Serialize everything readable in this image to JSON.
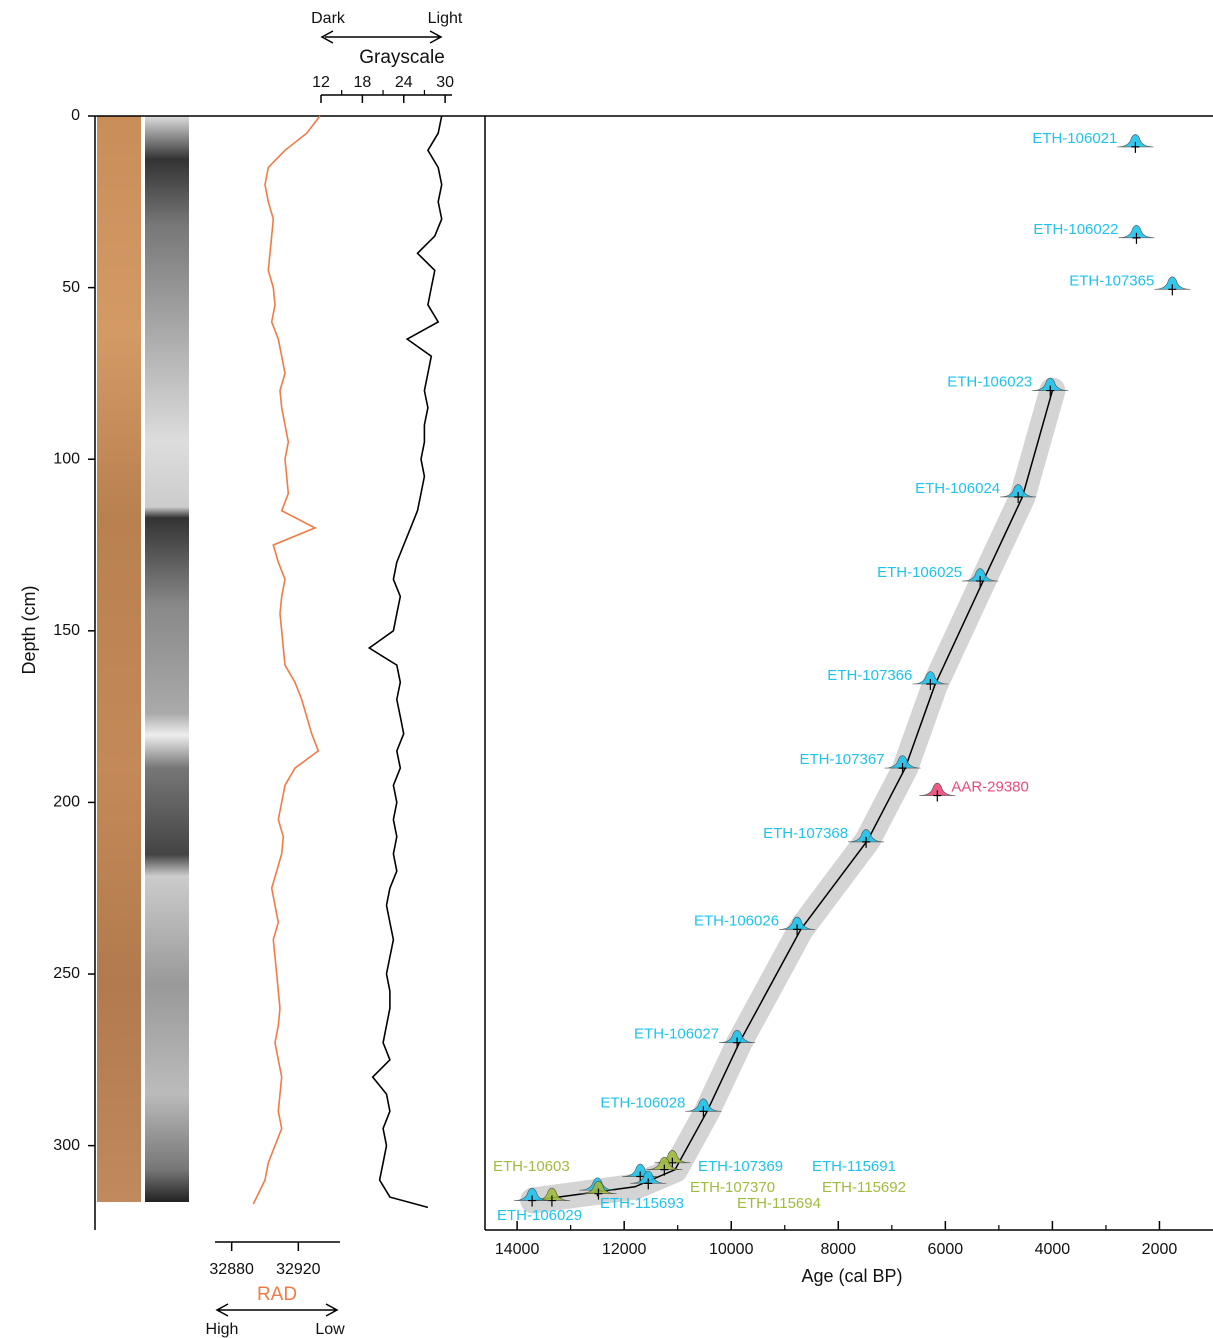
{
  "chart_data": [
    {
      "type": "line",
      "title": "Grayscale",
      "left_label": "Dark",
      "right_label": "Light",
      "ylabel": "Depth (cm)",
      "ylim": [
        0,
        324
      ],
      "yticks": [
        0,
        50,
        100,
        150,
        200,
        250,
        300
      ],
      "xlim": [
        12,
        31
      ],
      "xticks": [
        12,
        18,
        24,
        30
      ],
      "minor_xticks": [
        15,
        21,
        27
      ],
      "color": "#000000",
      "depth": [
        0,
        5,
        10,
        15,
        20,
        25,
        30,
        35,
        40,
        45,
        50,
        55,
        60,
        65,
        70,
        75,
        80,
        85,
        90,
        95,
        100,
        105,
        110,
        115,
        120,
        125,
        130,
        135,
        140,
        145,
        150,
        155,
        160,
        165,
        170,
        175,
        180,
        185,
        190,
        195,
        200,
        205,
        210,
        215,
        220,
        225,
        230,
        235,
        240,
        245,
        250,
        255,
        260,
        265,
        270,
        275,
        280,
        285,
        290,
        295,
        300,
        305,
        310,
        315,
        318
      ],
      "values": [
        29.5,
        29,
        27.5,
        29,
        29.5,
        29,
        29.5,
        28.5,
        26,
        28.5,
        28,
        27.5,
        29,
        24.5,
        28,
        27.5,
        27,
        27.5,
        27,
        27,
        26.5,
        27,
        26.5,
        26,
        25,
        24,
        23,
        22.5,
        23.5,
        23,
        22.5,
        19,
        23,
        23.5,
        23,
        23.5,
        24,
        23,
        23.5,
        22.5,
        23,
        22.5,
        23,
        22.5,
        23,
        22,
        21.5,
        22,
        22.5,
        22,
        21.5,
        22,
        22,
        21.5,
        21,
        22,
        19.5,
        21.5,
        22,
        21,
        21.5,
        21,
        20.5,
        22,
        27.5
      ]
    },
    {
      "type": "line",
      "title": "RAD",
      "left_label": "High",
      "right_label": "Low",
      "xlim": [
        32870,
        32945
      ],
      "xticks": [
        32880,
        32920
      ],
      "color": "#f07b45",
      "depth": [
        0,
        5,
        10,
        15,
        20,
        25,
        30,
        35,
        40,
        45,
        50,
        55,
        60,
        65,
        70,
        75,
        80,
        85,
        90,
        95,
        100,
        105,
        110,
        115,
        120,
        125,
        130,
        135,
        140,
        145,
        150,
        155,
        160,
        165,
        170,
        175,
        180,
        185,
        190,
        195,
        200,
        205,
        210,
        215,
        220,
        225,
        230,
        235,
        240,
        245,
        250,
        255,
        260,
        265,
        270,
        275,
        280,
        285,
        290,
        295,
        300,
        305,
        310,
        315,
        317
      ],
      "values": [
        32933,
        32925,
        32912,
        32902,
        32900,
        32902,
        32905,
        32904,
        32903,
        32902,
        32905,
        32906,
        32904,
        32908,
        32910,
        32912,
        32909,
        32910,
        32912,
        32914,
        32912,
        32913,
        32914,
        32910,
        32930,
        32905,
        32908,
        32912,
        32910,
        32909,
        32910,
        32911,
        32912,
        32918,
        32922,
        32925,
        32928,
        32932,
        32918,
        32912,
        32910,
        32908,
        32911,
        32910,
        32907,
        32904,
        32906,
        32908,
        32905,
        32906,
        32907,
        32908,
        32909,
        32908,
        32906,
        32908,
        32910,
        32909,
        32908,
        32910,
        32906,
        32902,
        32900,
        32895,
        32893
      ]
    },
    {
      "type": "scatter",
      "xlabel": "Age (cal BP)",
      "xlim": [
        14600,
        1000
      ],
      "xticks": [
        14000,
        12000,
        10000,
        8000,
        6000,
        4000,
        2000
      ],
      "minor_xticks": [
        13000,
        11000,
        9000,
        7000,
        5000,
        3000
      ],
      "age_model": {
        "color": "#000000",
        "depth": [
          80,
          111,
          135,
          166,
          190,
          211,
          237,
          270,
          290,
          307,
          312,
          316
        ],
        "age": [
          4000,
          4560,
          5280,
          6200,
          6750,
          7450,
          8700,
          9850,
          10450,
          11050,
          11800,
          13700
        ]
      },
      "dates": [
        {
          "name": "ETH-106021",
          "age": 2450,
          "depth": 9,
          "color": "#1ec3ec"
        },
        {
          "name": "ETH-106022",
          "age": 2430,
          "depth": 35.5,
          "color": "#1ec3ec"
        },
        {
          "name": "ETH-107365",
          "age": 1760,
          "depth": 50.5,
          "color": "#1ec3ec"
        },
        {
          "name": "ETH-106023",
          "age": 4040,
          "depth": 80,
          "color": "#1ec3ec"
        },
        {
          "name": "ETH-106024",
          "age": 4640,
          "depth": 111,
          "color": "#1ec3ec"
        },
        {
          "name": "ETH-106025",
          "age": 5350,
          "depth": 135.5,
          "color": "#1ec3ec"
        },
        {
          "name": "ETH-107366",
          "age": 6280,
          "depth": 165.5,
          "color": "#1ec3ec"
        },
        {
          "name": "ETH-107367",
          "age": 6800,
          "depth": 190,
          "color": "#1ec3ec"
        },
        {
          "name": "AAR-29380",
          "age": 6150,
          "depth": 198,
          "color": "#ea4a7a"
        },
        {
          "name": "ETH-107368",
          "age": 7480,
          "depth": 211.5,
          "color": "#1ec3ec"
        },
        {
          "name": "ETH-106026",
          "age": 8770,
          "depth": 237,
          "color": "#1ec3ec"
        },
        {
          "name": "ETH-106027",
          "age": 9890,
          "depth": 270,
          "color": "#1ec3ec"
        },
        {
          "name": "ETH-106028",
          "age": 10520,
          "depth": 290,
          "color": "#1ec3ec"
        },
        {
          "name": "ETH-107369",
          "age": 11700,
          "depth": 309,
          "color": "#1ec3ec"
        },
        {
          "name": "ETH-107370",
          "age": 11100,
          "depth": 305,
          "color": "#9fbc3e"
        },
        {
          "name": "ETH-115691",
          "age": 11550,
          "depth": 311,
          "color": "#1ec3ec"
        },
        {
          "name": "ETH-115692",
          "age": 11250,
          "depth": 307,
          "color": "#9fbc3e"
        },
        {
          "name": "ETH-115693",
          "age": 12500,
          "depth": 313,
          "color": "#1ec3ec"
        },
        {
          "name": "ETH-115694",
          "age": 12480,
          "depth": 314,
          "color": "#9fbc3e"
        },
        {
          "name": "ETH-10603",
          "age": 13350,
          "depth": 316,
          "color": "#9fbc3e"
        },
        {
          "name": "ETH-106029",
          "age": 13720,
          "depth": 316,
          "color": "#1ec3ec"
        }
      ]
    }
  ]
}
